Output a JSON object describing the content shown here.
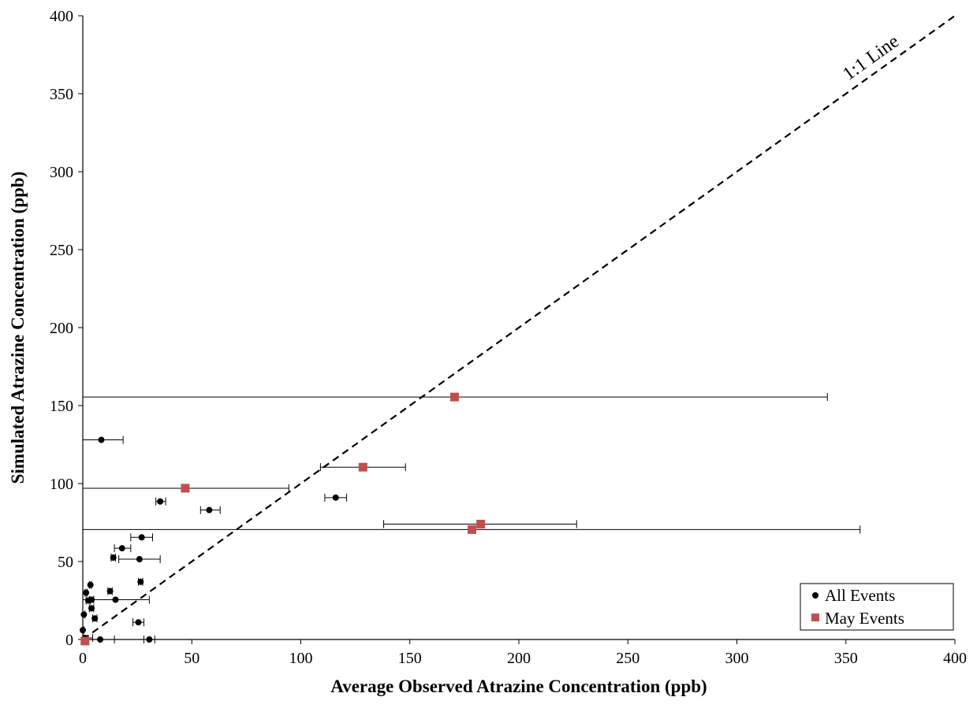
{
  "chart_data": {
    "type": "scatter",
    "xlabel": "Average Observed Atrazine Concentration (ppb)",
    "ylabel": "Simulated Atrazine Concentration (ppb)",
    "xlim": [
      0,
      400
    ],
    "ylim": [
      0,
      400
    ],
    "xticks": [
      0,
      50,
      100,
      150,
      200,
      250,
      300,
      350,
      400
    ],
    "yticks": [
      0,
      50,
      100,
      150,
      200,
      250,
      300,
      350,
      400
    ],
    "grid": false,
    "legend_position": "bottom-right",
    "reference_line": {
      "label": "1:1 Line",
      "from": [
        0,
        0
      ],
      "to": [
        400,
        400
      ],
      "style": "dashed"
    },
    "series": [
      {
        "name": "All Events",
        "marker": "circle",
        "color": "#000000",
        "points": [
          {
            "x": 8.5,
            "y": 128,
            "xmin": 0,
            "xmax": 18.5
          },
          {
            "x": 35.5,
            "y": 88.5,
            "xmin": 33.5,
            "xmax": 38
          },
          {
            "x": 58,
            "y": 83,
            "xmin": 54,
            "xmax": 63
          },
          {
            "x": 116,
            "y": 91,
            "xmin": 111,
            "xmax": 121
          },
          {
            "x": 27,
            "y": 65.5,
            "xmin": 22,
            "xmax": 32
          },
          {
            "x": 18,
            "y": 58.5,
            "xmin": 14.5,
            "xmax": 22
          },
          {
            "x": 14,
            "y": 52.5,
            "xmin": 13,
            "xmax": 15
          },
          {
            "x": 26,
            "y": 51.5,
            "xmin": 16.5,
            "xmax": 35.5
          },
          {
            "x": 26.5,
            "y": 37,
            "xmin": 25.5,
            "xmax": 27.5
          },
          {
            "x": 3.5,
            "y": 35,
            "xmin": 3,
            "xmax": 4
          },
          {
            "x": 12.5,
            "y": 31,
            "xmin": 11.5,
            "xmax": 13.5
          },
          {
            "x": 1.5,
            "y": 30,
            "xmin": 1,
            "xmax": 2
          },
          {
            "x": 2.5,
            "y": 25,
            "xmin": 1.5,
            "xmax": 3.5
          },
          {
            "x": 4,
            "y": 25.5,
            "xmin": 3,
            "xmax": 5
          },
          {
            "x": 15,
            "y": 25.5,
            "xmin": 0,
            "xmax": 30.5
          },
          {
            "x": 4,
            "y": 20,
            "xmin": 3,
            "xmax": 5
          },
          {
            "x": 0.5,
            "y": 16,
            "xmin": 0,
            "xmax": 1
          },
          {
            "x": 5.5,
            "y": 13.5,
            "xmin": 4.5,
            "xmax": 6.5
          },
          {
            "x": 25.5,
            "y": 11,
            "xmin": 23,
            "xmax": 28
          },
          {
            "x": 0,
            "y": 6,
            "xmin": 0,
            "xmax": 0.5
          },
          {
            "x": 1,
            "y": 1,
            "xmin": 0,
            "xmax": 4.5
          },
          {
            "x": 8,
            "y": 0,
            "xmin": 1.5,
            "xmax": 14.5
          },
          {
            "x": 30.5,
            "y": 0,
            "xmin": 28,
            "xmax": 33
          }
        ]
      },
      {
        "name": "May Events",
        "marker": "square",
        "color": "#c0504d",
        "points": [
          {
            "x": 170.5,
            "y": 155.5,
            "xmin": 0,
            "xmax": 341.5
          },
          {
            "x": 128.5,
            "y": 110.5,
            "xmin": 109,
            "xmax": 148
          },
          {
            "x": 47,
            "y": 97,
            "xmin": 0,
            "xmax": 94.5
          },
          {
            "x": 182.5,
            "y": 74,
            "xmin": 138,
            "xmax": 226.5
          },
          {
            "x": 178.5,
            "y": 70.5,
            "xmin": 0,
            "xmax": 356.5
          },
          {
            "x": 1,
            "y": -1,
            "xmin": 0,
            "xmax": 2
          }
        ]
      }
    ]
  }
}
